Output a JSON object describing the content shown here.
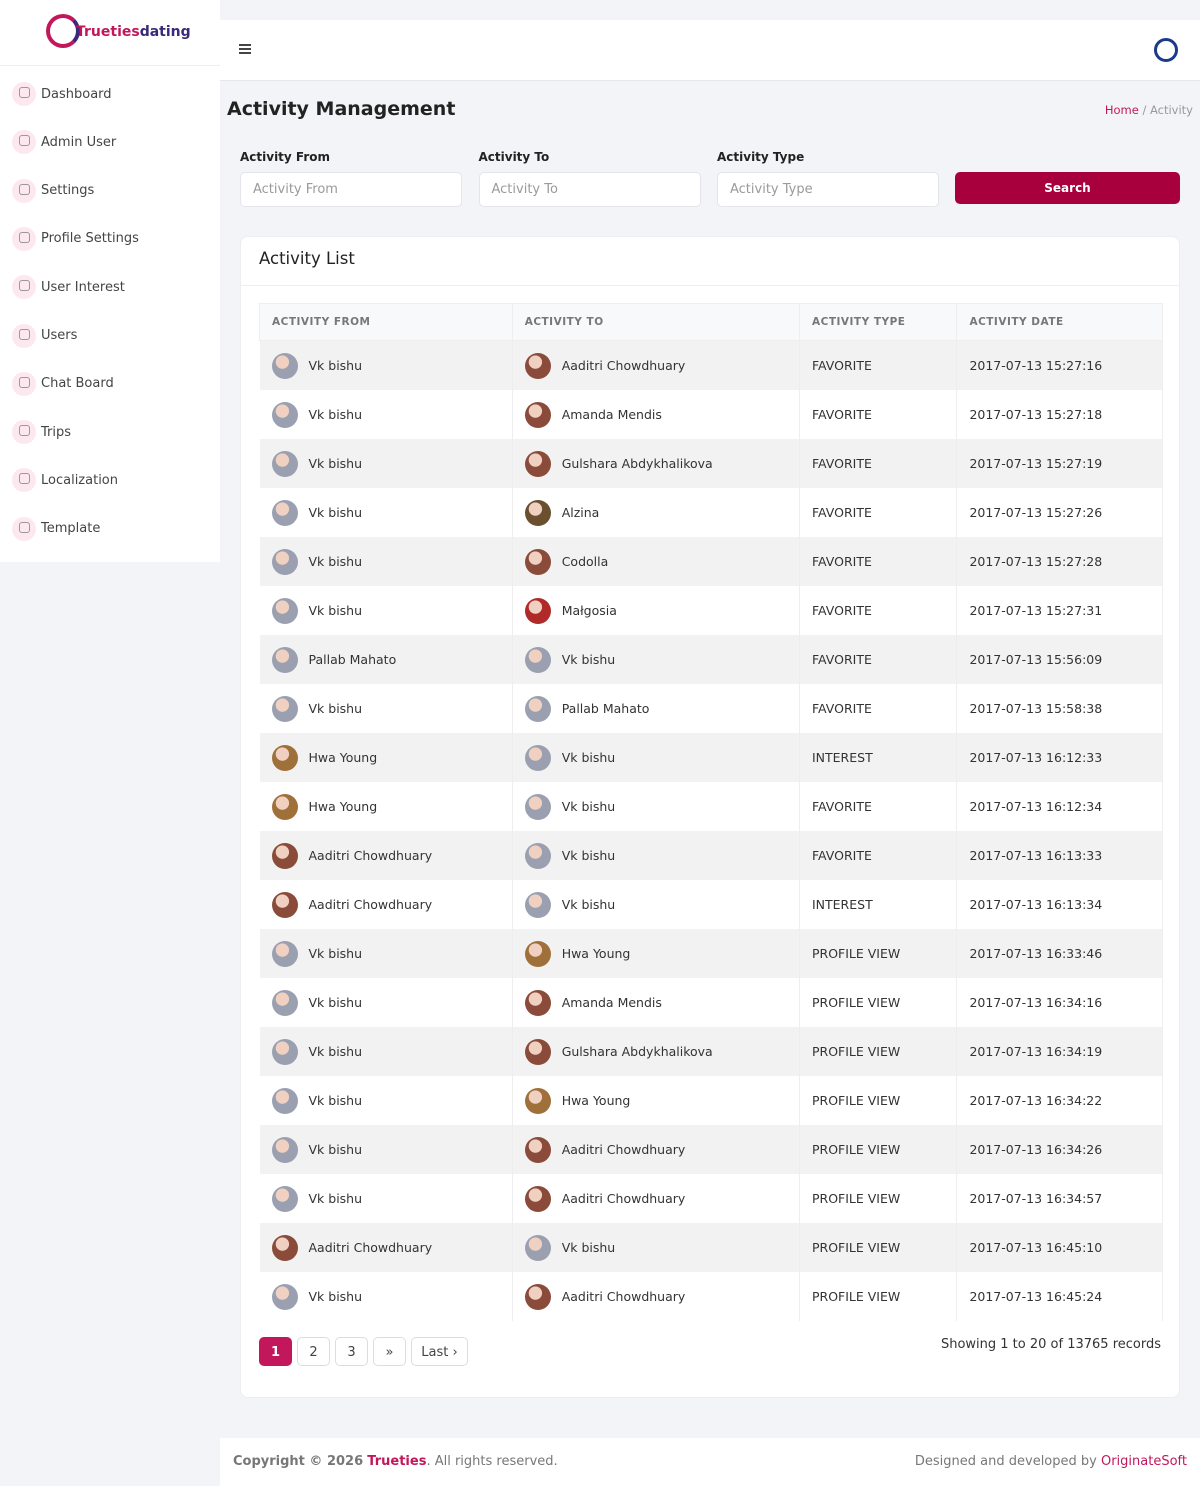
{
  "logo": {
    "part1": "Trueties",
    "part2": "dating"
  },
  "menu": [
    "Dashboard",
    "Admin User",
    "Settings",
    "Profile Settings",
    "User Interest",
    "Users",
    "Chat Board",
    "Trips",
    "Localization",
    "Template"
  ],
  "page": {
    "title": "Activity Management",
    "breadcrumb": {
      "home": "Home",
      "separator": "/",
      "current": "Activity"
    }
  },
  "filters": {
    "fields": [
      {
        "label": "Activity From",
        "placeholder": "Activity From"
      },
      {
        "label": "Activity To",
        "placeholder": "Activity To"
      },
      {
        "label": "Activity Type",
        "placeholder": "Activity Type"
      }
    ],
    "button": "Search"
  },
  "card": {
    "title": "Activity List"
  },
  "table": {
    "columns": [
      "ACTIVITY FROM",
      "ACTIVITY TO",
      "ACTIVITY TYPE",
      "ACTIVITY DATE"
    ],
    "rows": [
      [
        "Vk bishu",
        "Aaditri Chowdhuary",
        "FAVORITE",
        "2017-07-13 15:27:16"
      ],
      [
        "Vk bishu",
        "Amanda Mendis",
        "FAVORITE",
        "2017-07-13 15:27:18"
      ],
      [
        "Vk bishu",
        "Gulshara Abdykhalikova",
        "FAVORITE",
        "2017-07-13 15:27:19"
      ],
      [
        "Vk bishu",
        "Alzina",
        "FAVORITE",
        "2017-07-13 15:27:26"
      ],
      [
        "Vk bishu",
        "Codolla",
        "FAVORITE",
        "2017-07-13 15:27:28"
      ],
      [
        "Vk bishu",
        "Małgosia",
        "FAVORITE",
        "2017-07-13 15:27:31"
      ],
      [
        "Pallab Mahato",
        "Vk bishu",
        "FAVORITE",
        "2017-07-13 15:56:09"
      ],
      [
        "Vk bishu",
        "Pallab Mahato",
        "FAVORITE",
        "2017-07-13 15:58:38"
      ],
      [
        "Hwa Young",
        "Vk bishu",
        "INTEREST",
        "2017-07-13 16:12:33"
      ],
      [
        "Hwa Young",
        "Vk bishu",
        "FAVORITE",
        "2017-07-13 16:12:34"
      ],
      [
        "Aaditri Chowdhuary",
        "Vk bishu",
        "FAVORITE",
        "2017-07-13 16:13:33"
      ],
      [
        "Aaditri Chowdhuary",
        "Vk bishu",
        "INTEREST",
        "2017-07-13 16:13:34"
      ],
      [
        "Vk bishu",
        "Hwa Young",
        "PROFILE VIEW",
        "2017-07-13 16:33:46"
      ],
      [
        "Vk bishu",
        "Amanda Mendis",
        "PROFILE VIEW",
        "2017-07-13 16:34:16"
      ],
      [
        "Vk bishu",
        "Gulshara Abdykhalikova",
        "PROFILE VIEW",
        "2017-07-13 16:34:19"
      ],
      [
        "Vk bishu",
        "Hwa Young",
        "PROFILE VIEW",
        "2017-07-13 16:34:22"
      ],
      [
        "Vk bishu",
        "Aaditri Chowdhuary",
        "PROFILE VIEW",
        "2017-07-13 16:34:26"
      ],
      [
        "Vk bishu",
        "Aaditri Chowdhuary",
        "PROFILE VIEW",
        "2017-07-13 16:34:57"
      ],
      [
        "Aaditri Chowdhuary",
        "Vk bishu",
        "PROFILE VIEW",
        "2017-07-13 16:45:10"
      ],
      [
        "Vk bishu",
        "Aaditri Chowdhuary",
        "PROFILE VIEW",
        "2017-07-13 16:45:24"
      ]
    ]
  },
  "pagination": {
    "pages": [
      "1",
      "2",
      "3",
      "»",
      "Last ›"
    ],
    "summary": "Showing 1 to 20 of 13765 records"
  },
  "footer": {
    "left": {
      "prefix": "Copyright © 2026",
      "brand": "Trueties",
      "suffix": ". All rights reserved."
    },
    "right": {
      "prefix": "Designed and developed by",
      "brand": "OriginateSoft"
    }
  }
}
